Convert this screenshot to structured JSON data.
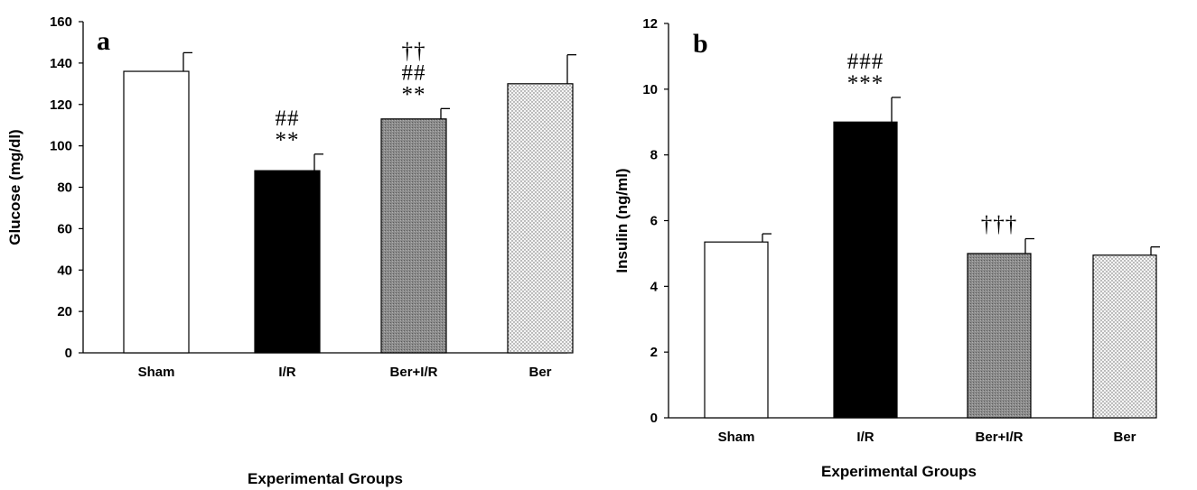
{
  "chart_data": [
    {
      "type": "bar",
      "panel_label": "a",
      "categories": [
        "Sham",
        "I/R",
        "Ber+I/R",
        "Ber"
      ],
      "values": [
        136,
        88,
        113,
        130
      ],
      "errors": [
        9,
        8,
        5,
        14
      ],
      "annotations": [
        [],
        [
          "**",
          "##"
        ],
        [
          "**",
          "##",
          "††"
        ],
        []
      ],
      "bar_fills": [
        "white",
        "black",
        "gray",
        "dotted"
      ],
      "xlabel": "Experimental Groups",
      "ylabel": "Glucose (mg/dl)",
      "ylim": [
        0,
        160
      ],
      "yticks": [
        0,
        20,
        40,
        60,
        80,
        100,
        120,
        140,
        160
      ],
      "ytick_labels": [
        "0",
        "20",
        "40",
        "60",
        "80",
        "100",
        "120",
        "140",
        "160"
      ],
      "grid": false
    },
    {
      "type": "bar",
      "panel_label": "b",
      "categories": [
        "Sham",
        "I/R",
        "Ber+I/R",
        "Ber"
      ],
      "values": [
        5.35,
        9.0,
        5.0,
        4.95
      ],
      "errors": [
        0.25,
        0.75,
        0.45,
        0.25
      ],
      "annotations": [
        [],
        [
          "***",
          "###"
        ],
        [
          "†††"
        ],
        []
      ],
      "bar_fills": [
        "white",
        "black",
        "gray",
        "dotted"
      ],
      "xlabel": "Experimental Groups",
      "ylabel": "Insulin (ng/ml)",
      "ylim": [
        0,
        12
      ],
      "yticks": [
        0,
        2,
        4,
        6,
        8,
        10,
        12
      ],
      "ytick_labels": [
        "0",
        "2",
        "4",
        "6",
        "8",
        "10",
        "12"
      ],
      "grid": false
    }
  ]
}
